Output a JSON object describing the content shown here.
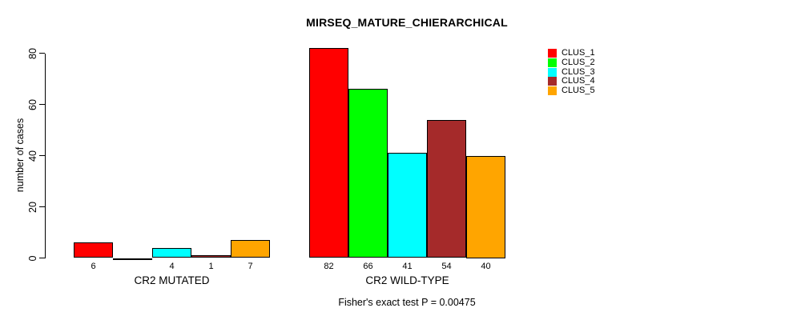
{
  "chart_data": {
    "type": "bar",
    "title": "MIRSEQ_MATURE_CHIERARCHICAL",
    "categories": [
      "CR2 MUTATED",
      "CR2 WILD-TYPE"
    ],
    "series": [
      {
        "name": "CLUS_1",
        "color": "#FF0000",
        "values": [
          6,
          82
        ]
      },
      {
        "name": "CLUS_2",
        "color": "#00FF00",
        "values": [
          0,
          66
        ]
      },
      {
        "name": "CLUS_3",
        "color": "#00FFFF",
        "values": [
          4,
          41
        ]
      },
      {
        "name": "CLUS_4",
        "color": "#A52A2A",
        "values": [
          1,
          54
        ]
      },
      {
        "name": "CLUS_5",
        "color": "#FFA500",
        "values": [
          7,
          40
        ]
      }
    ],
    "bar_value_labels": [
      [
        "6",
        "",
        "4",
        "1",
        "7"
      ],
      [
        "82",
        "66",
        "41",
        "54",
        "40"
      ]
    ],
    "ylabel": "number of cases",
    "xlabel": "",
    "ylim": [
      0,
      84
    ],
    "yticks": [
      0,
      20,
      40,
      60,
      80
    ],
    "grid": false,
    "legend_position": "top-right",
    "legend_labels": [
      "CLUS_1",
      "CLUS_2",
      "CLUS_3",
      "CLUS_4",
      "CLUS_5"
    ],
    "annotation": "Fisher's exact test P = 0.00475"
  },
  "colors": {
    "background": "#FFFFFF",
    "axis": "#000000",
    "text": "#000000",
    "bar_border": "#000000"
  }
}
